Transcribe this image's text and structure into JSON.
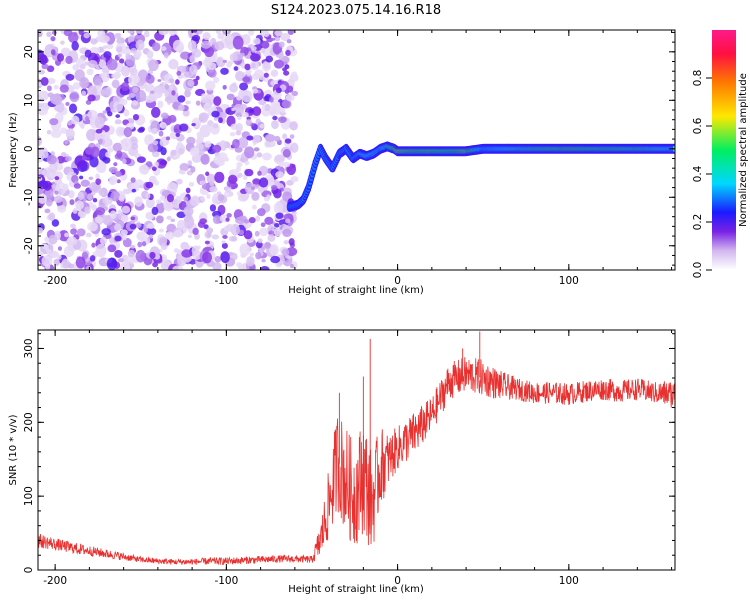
{
  "figure": {
    "title": "S124.2023.075.14.16.R18"
  },
  "chart_data": [
    {
      "type": "heatmap",
      "xlabel": "Height of straight line (km)",
      "ylabel": "Frequency (Hz)",
      "xlim": [
        -210,
        162
      ],
      "ylim": [
        -25,
        24.5
      ],
      "xticks": [
        -200,
        -100,
        0,
        100
      ],
      "yticks": [
        -20,
        -10,
        0,
        10,
        20
      ],
      "colorbar": {
        "label": "Normalized spectral amplitude",
        "range": [
          0,
          1
        ],
        "ticks": [
          0.0,
          0.2,
          0.4,
          0.6,
          0.8
        ],
        "colors": [
          "#ffffff",
          "#d2b8f0",
          "#7a22e4",
          "#1a1aff",
          "#00d8ff",
          "#00ee60",
          "#ffe800",
          "#ff7a00",
          "#ff1040",
          "#ff1a8c"
        ]
      },
      "noise_region_x": [
        -210,
        -60
      ],
      "signal_ridge": {
        "x": [
          -63,
          -58,
          -55,
          -52,
          -48,
          -45,
          -42,
          -38,
          -34,
          -30,
          -26,
          -22,
          -18,
          -14,
          -10,
          -6,
          -2,
          0,
          10,
          20,
          30,
          40,
          50,
          60,
          80,
          100,
          120,
          140,
          162
        ],
        "frequency": [
          -12,
          -11.5,
          -10.5,
          -8,
          -3,
          0,
          -2,
          -4,
          -1,
          0,
          -2,
          -1,
          -1.5,
          -1,
          0,
          0.5,
          0,
          -0.5,
          -0.5,
          -0.5,
          -0.5,
          -0.5,
          0,
          0,
          0,
          0,
          0,
          0,
          0
        ],
        "amplitude": [
          0.35,
          0.35,
          0.3,
          0.25,
          0.3,
          0.35,
          0.35,
          0.3,
          0.3,
          0.35,
          0.45,
          0.55,
          0.6,
          0.6,
          0.55,
          0.7,
          0.85,
          0.9,
          0.85,
          0.85,
          0.8,
          0.9,
          0.55,
          0.6,
          0.75,
          0.85,
          0.8,
          0.75,
          0.6
        ]
      }
    },
    {
      "type": "line",
      "xlabel": "Height of straight line (km)",
      "ylabel": "SNR (10 * v/v)",
      "xlim": [
        -210,
        162
      ],
      "ylim": [
        0,
        325
      ],
      "xticks": [
        -200,
        -100,
        0,
        100
      ],
      "yticks": [
        0,
        100,
        200,
        300
      ],
      "series": [
        {
          "color": "#e8302f",
          "x": [
            -210,
            -200,
            -190,
            -180,
            -170,
            -160,
            -150,
            -140,
            -130,
            -120,
            -110,
            -100,
            -90,
            -80,
            -70,
            -60,
            -50,
            -45,
            -40,
            -35,
            -30,
            -25,
            -20,
            -15,
            -10,
            -5,
            0,
            10,
            20,
            30,
            40,
            50,
            60,
            70,
            80,
            90,
            100,
            110,
            120,
            130,
            140,
            150,
            162
          ],
          "values": [
            40,
            35,
            30,
            26,
            22,
            18,
            14,
            12,
            11,
            11,
            12,
            12,
            13,
            14,
            15,
            15,
            14,
            40,
            90,
            150,
            120,
            100,
            130,
            90,
            140,
            150,
            165,
            185,
            210,
            255,
            265,
            260,
            250,
            245,
            240,
            240,
            238,
            242,
            245,
            242,
            245,
            240,
            238
          ],
          "noise_amplitude": [
            10,
            8,
            8,
            7,
            6,
            5,
            4,
            4,
            4,
            4,
            5,
            5,
            5,
            5,
            5,
            5,
            5,
            25,
            50,
            70,
            75,
            70,
            80,
            70,
            55,
            35,
            30,
            30,
            25,
            25,
            25,
            25,
            20,
            15,
            15,
            15,
            15,
            15,
            15,
            15,
            15,
            15,
            20
          ],
          "spikes": [
            {
              "x": -34,
              "y": 240
            },
            {
              "x": -20,
              "y": 262
            },
            {
              "x": -16,
              "y": 313
            },
            {
              "x": 48,
              "y": 323
            },
            {
              "x": 38,
              "y": 300
            }
          ]
        }
      ]
    }
  ]
}
